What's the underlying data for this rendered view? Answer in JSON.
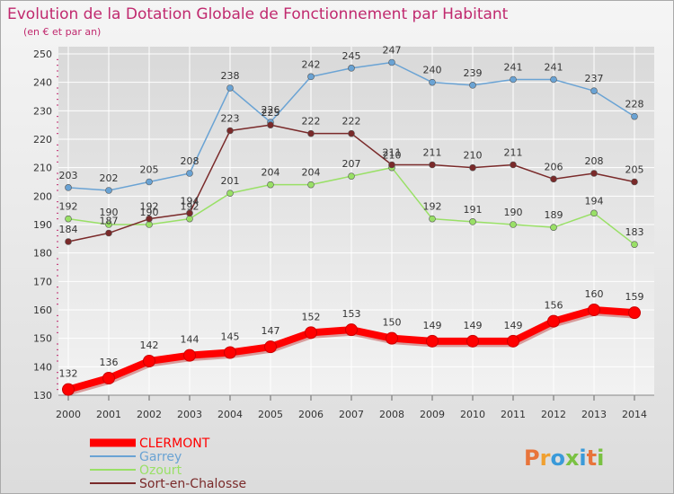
{
  "title": "Evolution de la Dotation Globale de Fonctionnement par Habitant",
  "subtitle": "(en € et par an)",
  "logo": "Proxiti",
  "colors": {
    "background_gradient_top": "#f5f5f5",
    "background_gradient_bottom": "#dcdcdc",
    "title": "#c0296e",
    "grid": "#ffffff",
    "axis_ticks": "#c0296e"
  },
  "chart_data": {
    "type": "line",
    "x": [
      "2000",
      "2001",
      "2002",
      "2003",
      "2004",
      "2005",
      "2006",
      "2007",
      "2008",
      "2009",
      "2010",
      "2011",
      "2012",
      "2013",
      "2014"
    ],
    "ylim": [
      130,
      250
    ],
    "yticks": [
      130,
      140,
      150,
      160,
      170,
      180,
      190,
      200,
      210,
      220,
      230,
      240,
      250
    ],
    "grid": true,
    "legend_position": "bottom-left",
    "series": [
      {
        "name": "CLERMONT",
        "color": "#ff0000",
        "values": [
          132,
          136,
          142,
          144,
          145,
          147,
          152,
          153,
          150,
          149,
          149,
          149,
          156,
          160,
          159
        ]
      },
      {
        "name": "Garrey",
        "color": "#6aa3d4",
        "values": [
          203,
          202,
          205,
          208,
          238,
          226,
          242,
          245,
          247,
          240,
          239,
          241,
          241,
          237,
          228
        ]
      },
      {
        "name": "Ozourt",
        "color": "#99e066",
        "values": [
          192,
          190,
          190,
          192,
          201,
          204,
          204,
          207,
          210,
          192,
          191,
          190,
          189,
          194,
          183
        ]
      },
      {
        "name": "Sort-en-Chalosse",
        "color": "#7a2a2a",
        "values": [
          184,
          187,
          192,
          194,
          223,
          225,
          222,
          222,
          211,
          211,
          210,
          211,
          206,
          208,
          205
        ]
      }
    ]
  }
}
